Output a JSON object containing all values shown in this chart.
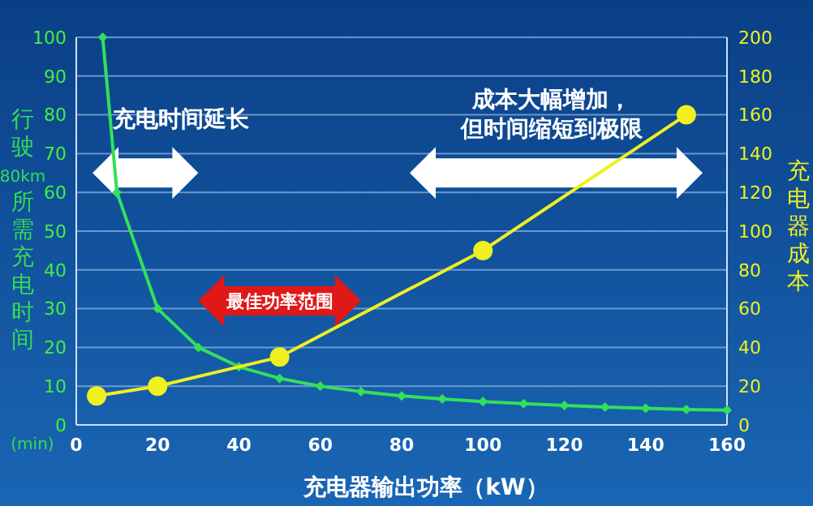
{
  "chart_data": {
    "type": "line",
    "xlabel": "充电器输出功率（kW）",
    "ylabel": "行驶80km所需充电时间",
    "y2label": "充电器成本",
    "xlim": [
      0,
      160
    ],
    "xticks": [
      0,
      20,
      40,
      60,
      80,
      100,
      120,
      140,
      160
    ],
    "ylim": [
      0,
      100
    ],
    "yticks": [
      0,
      10,
      20,
      30,
      40,
      50,
      60,
      70,
      80,
      90,
      100
    ],
    "y2lim": [
      0,
      200
    ],
    "y2ticks": [
      0,
      20,
      40,
      60,
      80,
      100,
      120,
      140,
      160,
      180,
      200
    ],
    "grid": "y",
    "series": [
      {
        "color": "#33e05a",
        "marker": "diamond",
        "x": [
          6.5,
          10,
          20,
          30,
          40,
          50,
          60,
          70,
          80,
          90,
          100,
          110,
          120,
          130,
          140,
          150,
          160
        ],
        "values": [
          100,
          60,
          30,
          20,
          15,
          12,
          10,
          8.6,
          7.5,
          6.7,
          6,
          5.5,
          5,
          4.6,
          4.3,
          4,
          3.8
        ]
      },
      {
        "color": "#f0f020",
        "marker": "circle",
        "axis": "y2",
        "x": [
          5,
          20,
          50,
          100,
          150
        ],
        "values": [
          15,
          20,
          35,
          90,
          160
        ]
      }
    ],
    "annotations": [
      "充电时间延长",
      "最佳功率范围",
      "成本大幅增加，但时间缩短到极限",
      "(min)"
    ]
  }
}
